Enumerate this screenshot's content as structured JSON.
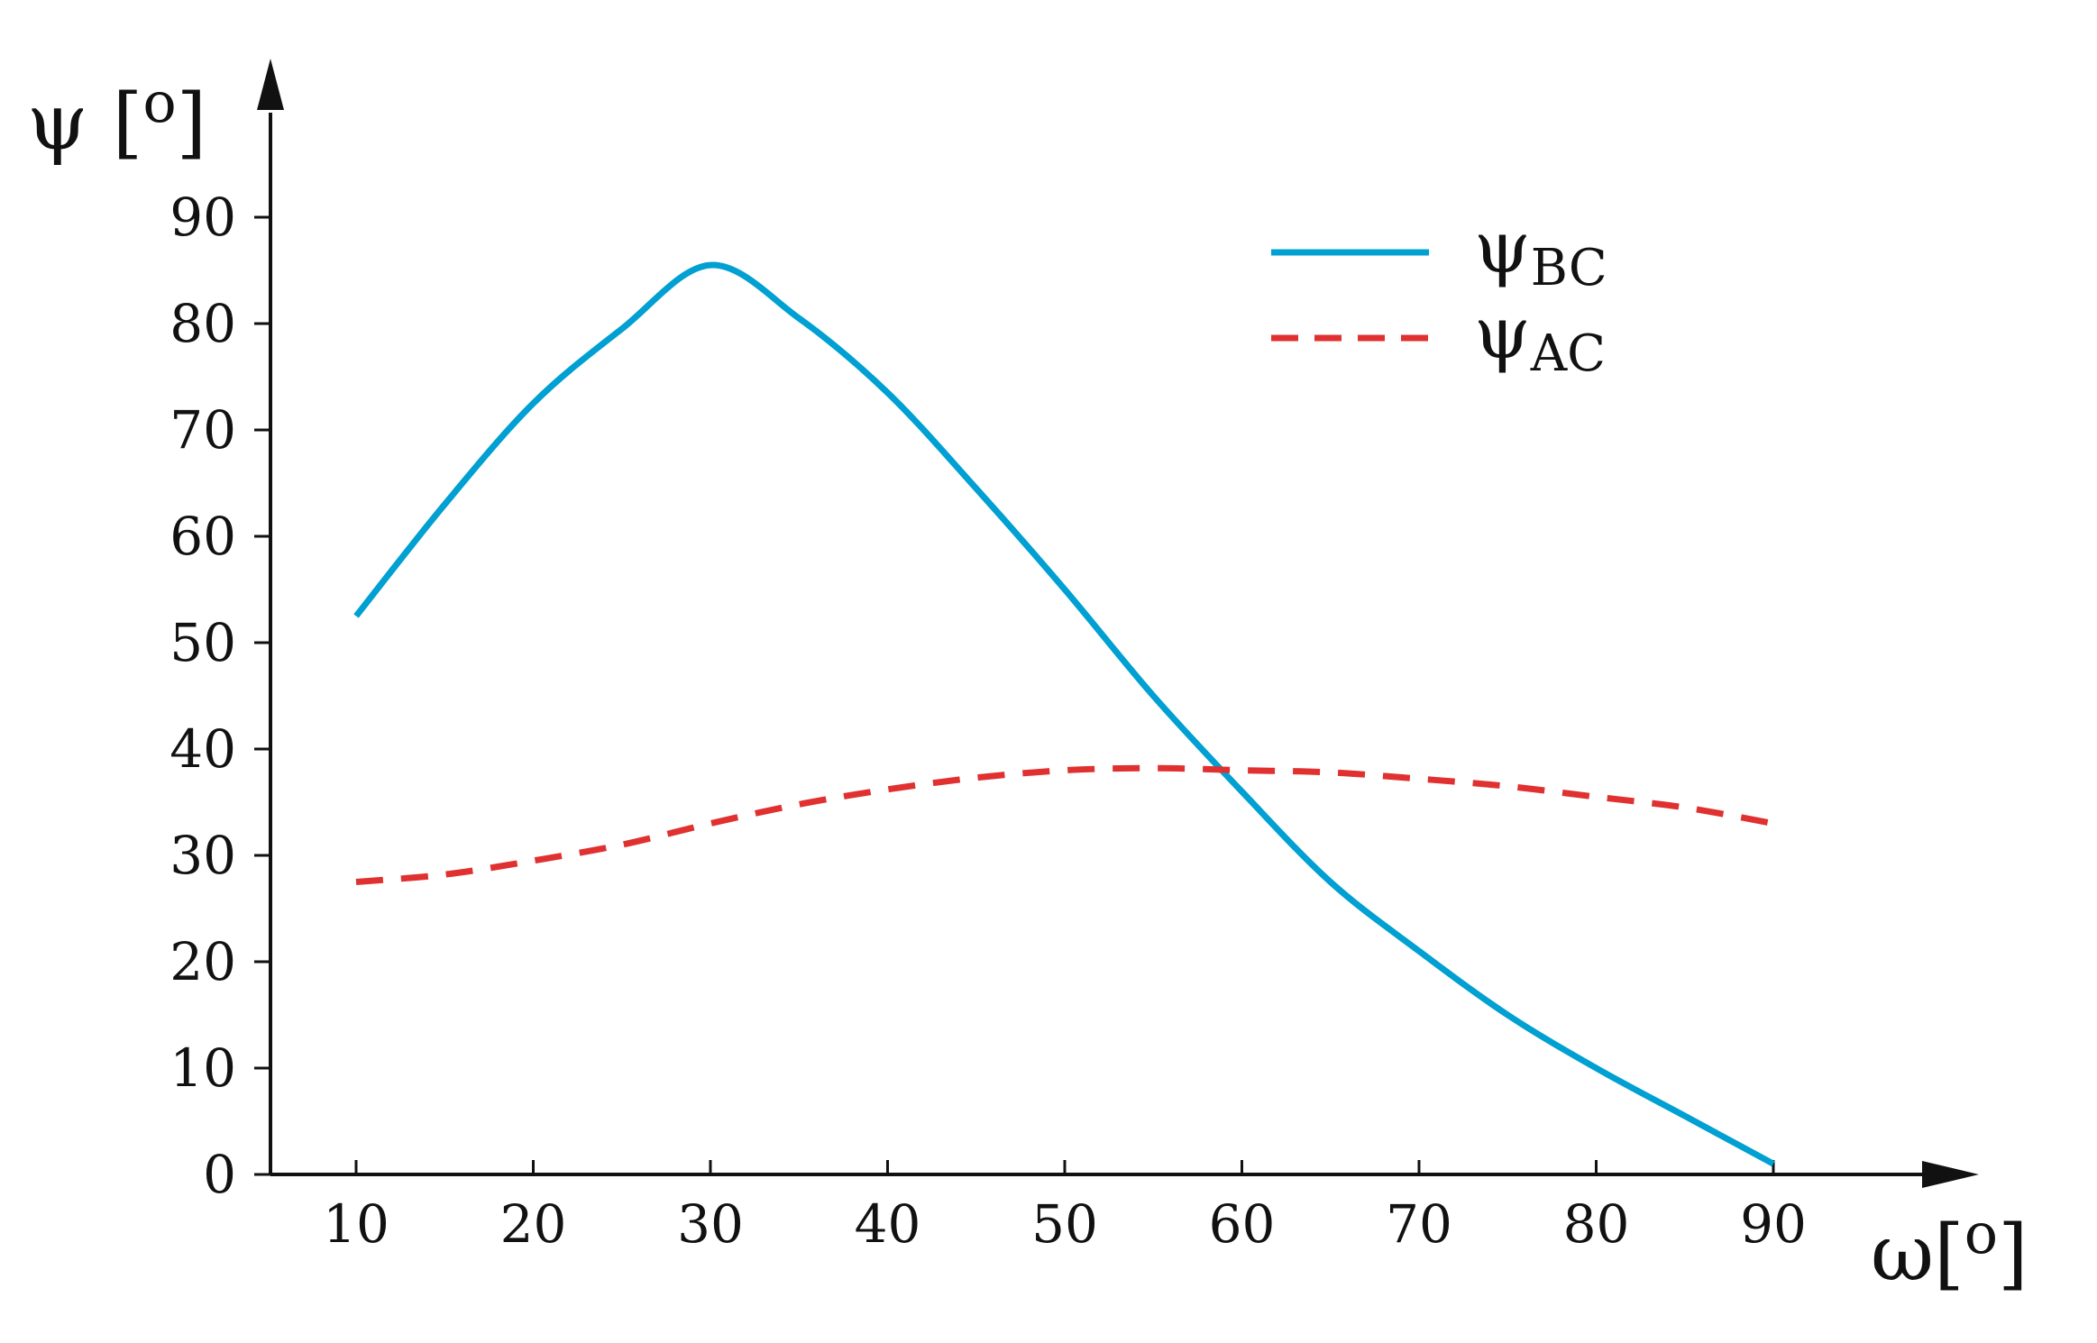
{
  "chart_data": {
    "type": "line",
    "title": "",
    "xlabel": "ω[o]",
    "ylabel": "ψ [o]",
    "xlim": [
      5,
      95
    ],
    "ylim": [
      0,
      100
    ],
    "xticks": [
      10,
      20,
      30,
      40,
      50,
      60,
      70,
      80,
      90
    ],
    "yticks": [
      0,
      10,
      20,
      30,
      40,
      50,
      60,
      70,
      80,
      90
    ],
    "grid": false,
    "legend_position": "top-right",
    "series": [
      {
        "name": "ψBC",
        "name_base": "ψ",
        "name_sub": "BC",
        "color": "#00a0d2",
        "style": "solid",
        "x": [
          10,
          15,
          20,
          25,
          30,
          35,
          40,
          45,
          50,
          55,
          60,
          65,
          70,
          75,
          80,
          85,
          90
        ],
        "values": [
          52.5,
          63,
          72.5,
          79.5,
          85.5,
          80.5,
          73.5,
          64.5,
          55,
          45,
          36,
          27.5,
          21,
          15,
          10,
          5.5,
          1
        ]
      },
      {
        "name": "ψAC",
        "name_base": "ψ",
        "name_sub": "AC",
        "color": "#e03030",
        "style": "dashed",
        "x": [
          10,
          15,
          20,
          25,
          30,
          35,
          40,
          45,
          50,
          55,
          60,
          65,
          70,
          75,
          80,
          85,
          90
        ],
        "values": [
          27.5,
          28.2,
          29.5,
          31,
          33,
          34.8,
          36.2,
          37.3,
          38,
          38.2,
          38,
          37.8,
          37.2,
          36.5,
          35.5,
          34.5,
          33
        ]
      }
    ]
  }
}
